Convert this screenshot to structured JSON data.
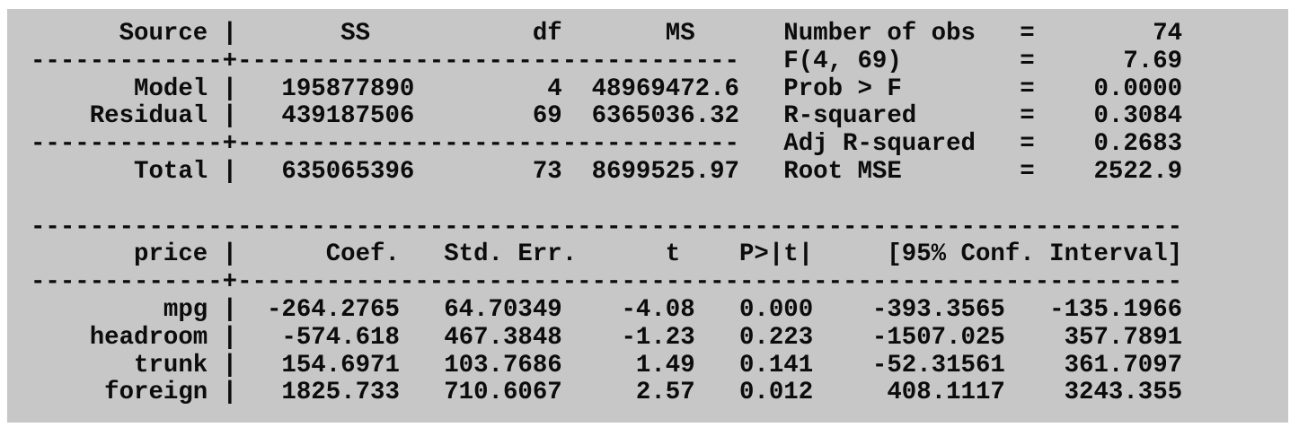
{
  "colors": {
    "page_background": "#ffffff",
    "panel_background": "#c7c7c7",
    "text": "#0c0c0c"
  },
  "output_lines": [
    "      Source |       SS           df       MS      Number of obs   =        74",
    "-------------+----------------------------------   F(4, 69)        =      7.69",
    "       Model |   195877890         4  48969472.6   Prob > F        =    0.0000",
    "    Residual |   439187506        69  6365036.32   R-squared       =    0.3084",
    "-------------+----------------------------------   Adj R-squared   =    0.2683",
    "       Total |   635065396        73  8699525.97   Root MSE        =    2522.9",
    "",
    "------------------------------------------------------------------------------",
    "       price |      Coef.   Std. Err.      t    P>|t|     [95% Conf. Interval]",
    "-------------+----------------------------------------------------------------",
    "         mpg |  -264.2765   64.70349    -4.08   0.000    -393.3565   -135.1966",
    "    headroom |   -574.618   467.3848    -1.23   0.223    -1507.025    357.7891",
    "       trunk |   154.6971   103.7686     1.49   0.141    -52.31561    361.7097",
    "     foreign |   1825.733   710.6067     2.57   0.012     408.1117    3243.355"
  ],
  "regression": {
    "anova_table": {
      "columns": [
        "Source",
        "SS",
        "df",
        "MS"
      ],
      "rows": [
        {
          "source": "Model",
          "ss": "195877890",
          "df": "4",
          "ms": "48969472.6"
        },
        {
          "source": "Residual",
          "ss": "439187506",
          "df": "69",
          "ms": "6365036.32"
        },
        {
          "source": "Total",
          "ss": "635065396",
          "df": "73",
          "ms": "8699525.97"
        }
      ]
    },
    "fit_statistics": [
      {
        "label": "Number of obs",
        "operator": "=",
        "value": "74"
      },
      {
        "label": "F(4, 69)",
        "operator": "=",
        "value": "7.69"
      },
      {
        "label": "Prob > F",
        "operator": "=",
        "value": "0.0000"
      },
      {
        "label": "R-squared",
        "operator": "=",
        "value": "0.3084"
      },
      {
        "label": "Adj R-squared",
        "operator": "=",
        "value": "0.2683"
      },
      {
        "label": "Root MSE",
        "operator": "=",
        "value": "2522.9"
      }
    ],
    "coefficient_table": {
      "dependent_variable": "price",
      "columns": [
        "price",
        "Coef.",
        "Std. Err.",
        "t",
        "P>|t|",
        "[95% Conf. Interval]"
      ],
      "rows": [
        {
          "variable": "mpg",
          "coef": "-264.2765",
          "std_err": "64.70349",
          "t": "-4.08",
          "p": "0.000",
          "ci_lower": "-393.3565",
          "ci_upper": "-135.1966"
        },
        {
          "variable": "headroom",
          "coef": "-574.618",
          "std_err": "467.3848",
          "t": "-1.23",
          "p": "0.223",
          "ci_lower": "-1507.025",
          "ci_upper": "357.7891"
        },
        {
          "variable": "trunk",
          "coef": "154.6971",
          "std_err": "103.7686",
          "t": "1.49",
          "p": "0.141",
          "ci_lower": "-52.31561",
          "ci_upper": "361.7097"
        },
        {
          "variable": "foreign",
          "coef": "1825.733",
          "std_err": "710.6067",
          "t": "2.57",
          "p": "0.012",
          "ci_lower": "408.1117",
          "ci_upper": "3243.355"
        }
      ]
    }
  }
}
